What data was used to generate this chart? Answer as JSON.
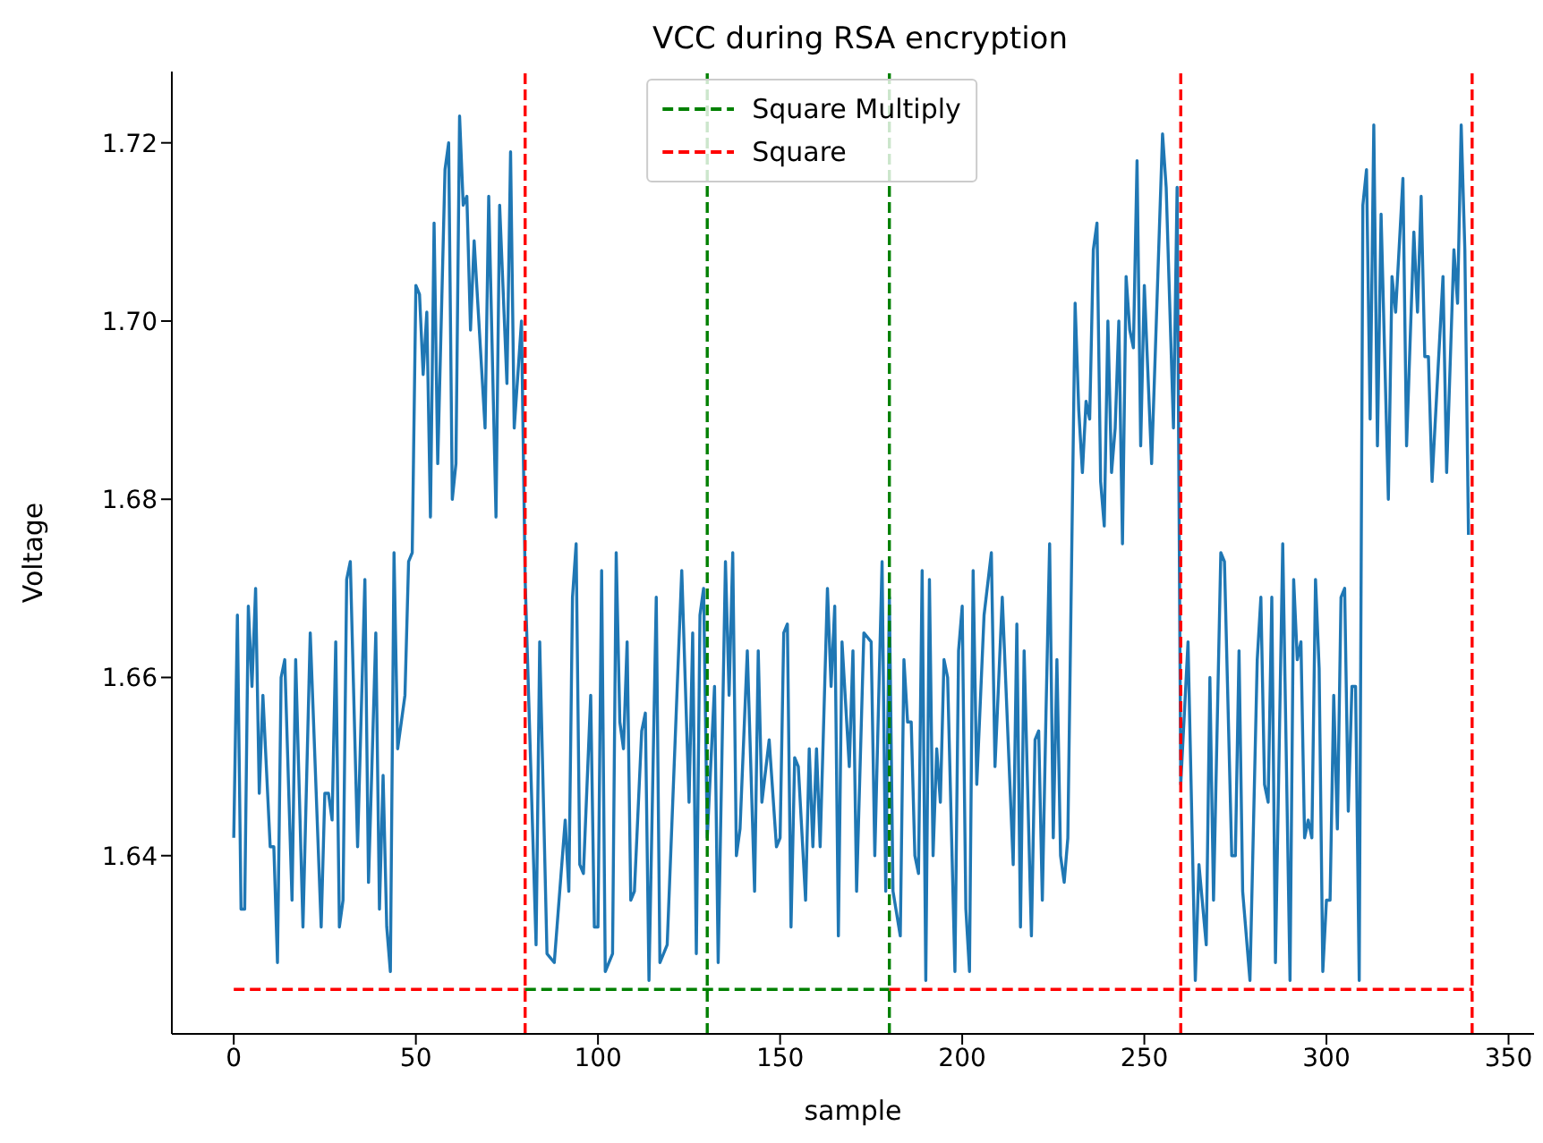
{
  "chart_data": {
    "type": "line",
    "title": "VCC during RSA encryption",
    "xlabel": "sample",
    "ylabel": "Voltage",
    "xlim": [
      -17,
      357
    ],
    "xticks": [
      0,
      50,
      100,
      150,
      200,
      250,
      300,
      350
    ],
    "ylim": [
      1.62,
      1.728
    ],
    "yticks": [
      {
        "value": 1.64,
        "label": "1.64"
      },
      {
        "value": 1.66,
        "label": "1.66"
      },
      {
        "value": 1.68,
        "label": "1.68"
      },
      {
        "value": 1.7,
        "label": "1.70"
      },
      {
        "value": 1.72,
        "label": "1.72"
      }
    ],
    "legend": "top",
    "grid": false,
    "ref_lines": [
      {
        "axis": "x",
        "value": 80,
        "color": "#ff0000",
        "line_style": "dashed"
      },
      {
        "axis": "x",
        "value": 130,
        "color": "#008000",
        "line_style": "dashed"
      },
      {
        "axis": "x",
        "value": 180,
        "color": "#008000",
        "line_style": "dashed"
      },
      {
        "axis": "x",
        "value": 260,
        "color": "#ff0000",
        "line_style": "dashed"
      },
      {
        "axis": "x",
        "value": 340,
        "color": "#ff0000",
        "line_style": "dashed"
      }
    ],
    "series": [
      {
        "color": "#1f77b4",
        "line_style": "solid",
        "x": [
          0,
          1,
          2,
          3,
          4,
          5,
          6,
          7,
          8,
          10,
          11,
          12,
          13,
          14,
          16,
          17,
          19,
          21,
          24,
          25,
          26,
          27,
          28,
          29,
          30,
          31,
          32,
          34,
          36,
          37,
          39,
          40,
          41,
          42,
          43,
          44,
          45,
          47,
          48,
          49,
          50,
          51,
          52,
          53,
          54,
          55,
          56,
          58,
          59,
          60,
          61,
          62,
          63,
          64,
          65,
          66,
          69,
          70,
          72,
          73,
          75,
          76,
          77,
          79,
          80,
          83,
          84,
          86,
          88,
          91,
          92,
          93,
          94,
          95,
          96,
          98,
          99,
          100,
          101,
          102,
          104,
          105,
          106,
          107,
          108,
          109,
          110,
          112,
          113,
          114,
          116,
          117,
          119,
          123,
          125,
          126,
          127,
          128,
          129,
          130,
          132,
          133,
          135,
          136,
          137,
          138,
          139,
          141,
          143,
          144,
          145,
          147,
          149,
          150,
          151,
          152,
          153,
          154,
          155,
          157,
          158,
          159,
          160,
          161,
          163,
          164,
          165,
          166,
          167,
          169,
          170,
          171,
          173,
          175,
          176,
          178,
          179,
          180,
          181,
          183,
          184,
          185,
          186,
          187,
          188,
          189,
          190,
          191,
          192,
          193,
          194,
          195,
          196,
          198,
          199,
          200,
          201,
          202,
          203,
          204,
          206,
          208,
          209,
          211,
          214,
          215,
          216,
          217,
          219,
          220,
          221,
          222,
          223,
          224,
          225,
          226,
          227,
          228,
          229,
          231,
          232,
          233,
          234,
          235,
          236,
          237,
          238,
          239,
          240,
          241,
          242,
          243,
          244,
          245,
          246,
          247,
          248,
          249,
          250,
          252,
          255,
          256,
          258,
          259,
          260,
          262,
          264,
          265,
          267,
          268,
          269,
          271,
          272,
          274,
          275,
          276,
          277,
          279,
          281,
          282,
          283,
          284,
          285,
          286,
          288,
          290,
          291,
          292,
          293,
          294,
          295,
          296,
          297,
          298,
          299,
          300,
          301,
          302,
          303,
          304,
          305,
          306,
          307,
          308,
          309,
          310,
          311,
          312,
          313,
          314,
          315,
          317,
          318,
          319,
          321,
          322,
          324,
          325,
          326,
          327,
          328,
          329,
          332,
          333,
          335,
          336,
          337,
          338,
          339
        ],
        "values": [
          1.642,
          1.667,
          1.634,
          1.634,
          1.668,
          1.659,
          1.67,
          1.647,
          1.658,
          1.641,
          1.641,
          1.628,
          1.66,
          1.662,
          1.635,
          1.662,
          1.632,
          1.665,
          1.632,
          1.647,
          1.647,
          1.644,
          1.664,
          1.632,
          1.635,
          1.671,
          1.673,
          1.641,
          1.671,
          1.637,
          1.665,
          1.634,
          1.649,
          1.632,
          1.627,
          1.674,
          1.652,
          1.658,
          1.673,
          1.674,
          1.704,
          1.703,
          1.694,
          1.701,
          1.678,
          1.711,
          1.684,
          1.717,
          1.72,
          1.68,
          1.684,
          1.723,
          1.713,
          1.714,
          1.699,
          1.709,
          1.688,
          1.714,
          1.678,
          1.713,
          1.693,
          1.719,
          1.688,
          1.7,
          1.671,
          1.63,
          1.664,
          1.629,
          1.628,
          1.644,
          1.636,
          1.669,
          1.675,
          1.639,
          1.638,
          1.658,
          1.632,
          1.632,
          1.672,
          1.627,
          1.629,
          1.674,
          1.655,
          1.652,
          1.664,
          1.635,
          1.636,
          1.654,
          1.656,
          1.626,
          1.669,
          1.628,
          1.63,
          1.672,
          1.646,
          1.665,
          1.629,
          1.667,
          1.67,
          1.642,
          1.659,
          1.628,
          1.673,
          1.658,
          1.674,
          1.64,
          1.643,
          1.663,
          1.636,
          1.663,
          1.646,
          1.653,
          1.641,
          1.642,
          1.665,
          1.666,
          1.632,
          1.651,
          1.65,
          1.635,
          1.652,
          1.641,
          1.652,
          1.641,
          1.67,
          1.659,
          1.668,
          1.631,
          1.664,
          1.65,
          1.663,
          1.636,
          1.665,
          1.664,
          1.64,
          1.673,
          1.636,
          1.669,
          1.636,
          1.631,
          1.662,
          1.655,
          1.655,
          1.64,
          1.638,
          1.672,
          1.626,
          1.671,
          1.64,
          1.652,
          1.646,
          1.662,
          1.66,
          1.627,
          1.663,
          1.668,
          1.634,
          1.627,
          1.672,
          1.648,
          1.667,
          1.674,
          1.65,
          1.669,
          1.639,
          1.666,
          1.632,
          1.663,
          1.631,
          1.653,
          1.654,
          1.635,
          1.656,
          1.675,
          1.642,
          1.662,
          1.64,
          1.637,
          1.642,
          1.702,
          1.69,
          1.683,
          1.691,
          1.689,
          1.708,
          1.711,
          1.682,
          1.677,
          1.7,
          1.683,
          1.688,
          1.7,
          1.675,
          1.705,
          1.699,
          1.697,
          1.718,
          1.686,
          1.704,
          1.684,
          1.721,
          1.715,
          1.688,
          1.715,
          1.648,
          1.664,
          1.626,
          1.639,
          1.63,
          1.66,
          1.635,
          1.674,
          1.673,
          1.64,
          1.64,
          1.663,
          1.636,
          1.626,
          1.662,
          1.669,
          1.648,
          1.646,
          1.669,
          1.628,
          1.675,
          1.626,
          1.671,
          1.662,
          1.664,
          1.642,
          1.644,
          1.642,
          1.671,
          1.661,
          1.627,
          1.635,
          1.635,
          1.658,
          1.643,
          1.669,
          1.67,
          1.645,
          1.659,
          1.659,
          1.626,
          1.713,
          1.717,
          1.689,
          1.722,
          1.686,
          1.712,
          1.68,
          1.705,
          1.701,
          1.716,
          1.686,
          1.71,
          1.701,
          1.714,
          1.696,
          1.696,
          1.682,
          1.705,
          1.683,
          1.708,
          1.702,
          1.722,
          1.708,
          1.676
        ]
      },
      {
        "name": "Square Multiply",
        "color": "#008000",
        "line_style": "dashed",
        "x": [
          80,
          180
        ],
        "values": [
          1.625,
          1.625
        ]
      },
      {
        "name": "Square",
        "color": "#ff0000",
        "line_style": "dashed",
        "x": [
          0,
          80,
          130,
          180,
          340
        ],
        "values": [
          1.625,
          1.625,
          null,
          1.625,
          1.625
        ]
      }
    ]
  }
}
